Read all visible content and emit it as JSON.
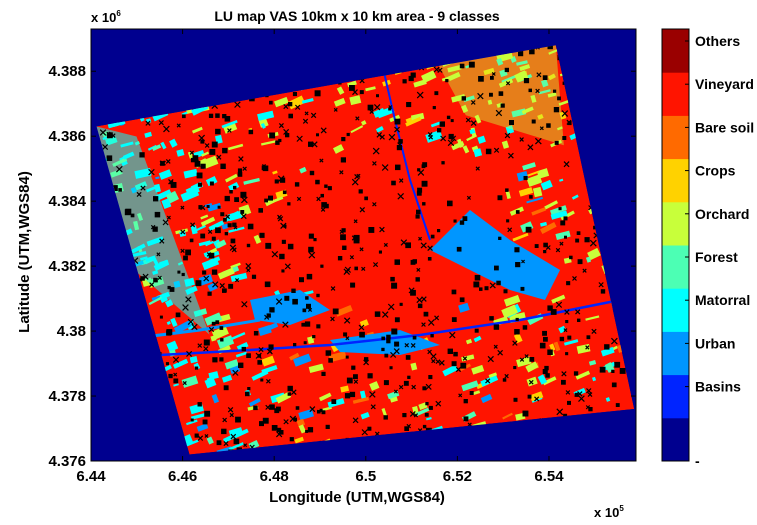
{
  "chart_data": {
    "type": "heatmap",
    "title": "LU map VAS 10km x 10 km area -  9 classes",
    "xlabel": "Longitude (UTM,WGS84)",
    "ylabel": "Latitude (UTM,WGS84)",
    "x_exponent_label": "x 10",
    "x_exponent_power": "5",
    "y_exponent_label": "x 10",
    "y_exponent_power": "6",
    "xlim": [
      6.44,
      6.559
    ],
    "ylim": [
      4.376,
      4.3893
    ],
    "xticks": [
      6.44,
      6.46,
      6.48,
      6.5,
      6.52,
      6.54
    ],
    "xtick_labels": [
      "6.44",
      "6.46",
      "6.48",
      "6.5",
      "6.52",
      "6.54"
    ],
    "yticks": [
      4.376,
      4.378,
      4.38,
      4.382,
      4.384,
      4.386,
      4.388
    ],
    "ytick_labels": [
      "4.376",
      "4.378",
      "4.38",
      "4.382",
      "4.384",
      "4.386",
      "4.388"
    ],
    "background_color": "#00008f",
    "scene_corners": [
      [
        6.4412,
        4.3863
      ],
      [
        6.5415,
        4.3888
      ],
      [
        6.5586,
        4.3776
      ],
      [
        6.4615,
        4.3762
      ]
    ],
    "colorbar": {
      "classes": [
        "-",
        "Basins",
        "Urban",
        "Matorral",
        "Forest",
        "Orchard",
        "Crops",
        "Bare soil",
        "Vineyard",
        "Others"
      ],
      "colors": [
        "#00008f",
        "#0024ff",
        "#0096ff",
        "#00ffff",
        "#4cffb4",
        "#c8ff3a",
        "#ffd200",
        "#ff6a00",
        "#ff1400",
        "#9a0000"
      ]
    }
  }
}
